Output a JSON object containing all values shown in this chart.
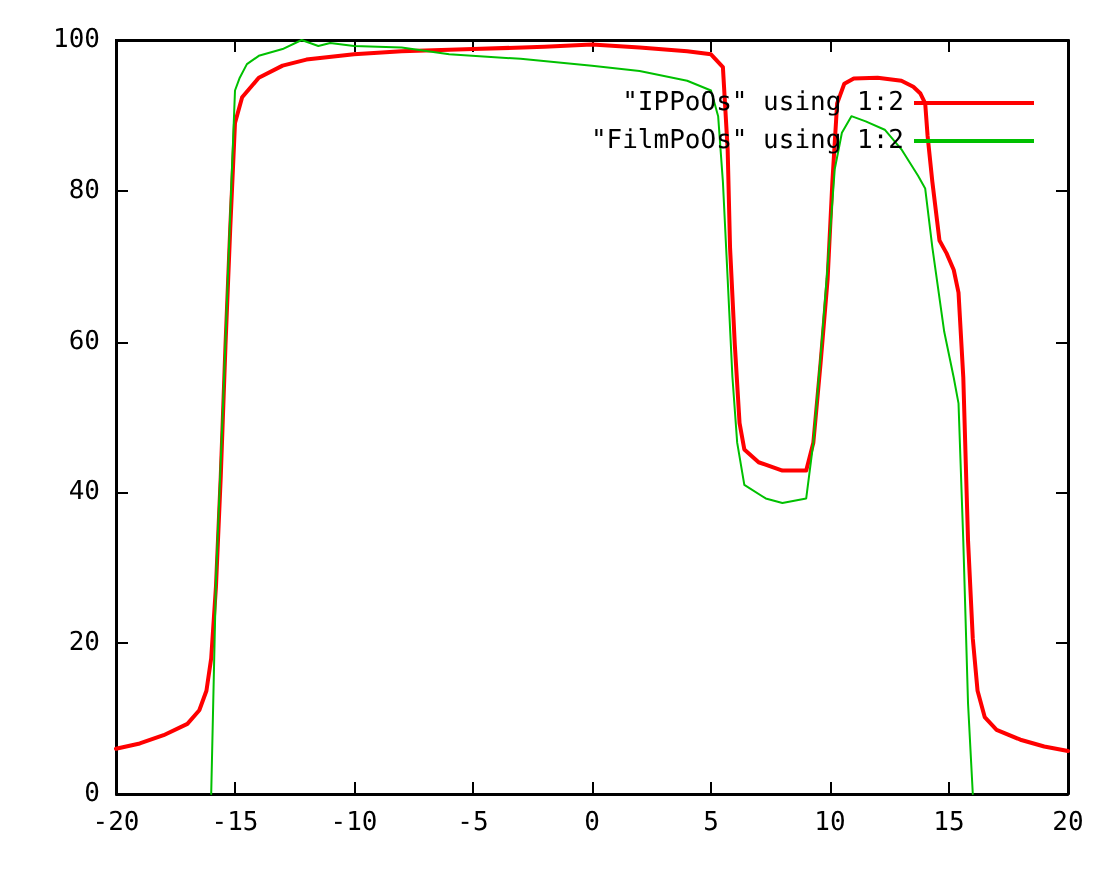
{
  "chart_data": {
    "type": "line",
    "series": [
      {
        "name": "\"IPPoOs\" using 1:2",
        "color": "#ff0000",
        "x": [
          -20,
          -19,
          -18,
          -17,
          -16.5,
          -16.2,
          -16,
          -15.8,
          -15.6,
          -15.4,
          -15.2,
          -15,
          -14.7,
          -14,
          -13,
          -12,
          -10,
          -8,
          -5,
          -2,
          0,
          2,
          4,
          5,
          5.5,
          5.7,
          5.8,
          6,
          6.2,
          6.4,
          7,
          8,
          9,
          9.3,
          9.6,
          9.9,
          10.1,
          10.3,
          10.6,
          11,
          12,
          13,
          13.5,
          13.8,
          14,
          14.1,
          14.3,
          14.6,
          14.9,
          15.2,
          15.4,
          15.6,
          15.8,
          16,
          16.2,
          16.5,
          17,
          18,
          19,
          20
        ],
        "values": [
          6,
          6.7,
          7.8,
          9.3,
          11.1,
          13.7,
          18,
          27.5,
          42,
          59.5,
          75,
          89,
          92.4,
          95,
          96.6,
          97.4,
          98.1,
          98.5,
          98.8,
          99.1,
          99.4,
          99,
          98.5,
          98.1,
          96.4,
          85.5,
          72.5,
          59.6,
          49.2,
          45.7,
          44,
          42.9,
          42.9,
          46.6,
          57,
          68.3,
          81.2,
          91.6,
          94.2,
          94.9,
          95,
          94.6,
          93.8,
          92.9,
          91.6,
          87.3,
          81.2,
          73.4,
          71.7,
          69.5,
          66.5,
          55.3,
          33.6,
          20.6,
          13.7,
          10.2,
          8.5,
          7.2,
          6.3,
          5.7
        ]
      },
      {
        "name": "\"FilmPoOs\" using 1:2",
        "color": "#00c000",
        "x": [
          -16,
          -15.8,
          -15.5,
          -15.2,
          -15,
          -14.8,
          -14.5,
          -14,
          -13,
          -12.2,
          -11.5,
          -11,
          -10,
          -8,
          -6,
          -3,
          0,
          2,
          4,
          5,
          5.3,
          5.5,
          5.7,
          5.9,
          6.1,
          6.4,
          7.3,
          8,
          9,
          9.3,
          9.6,
          9.9,
          10.2,
          10.5,
          10.9,
          11.5,
          12.3,
          13,
          13.7,
          14,
          14.3,
          14.8,
          15.2,
          15.4,
          15.6,
          15.8,
          16
        ],
        "values": [
          0,
          28.4,
          51.8,
          76.9,
          93.3,
          95,
          96.8,
          97.9,
          98.8,
          100,
          99.2,
          99.6,
          99.2,
          99,
          98.1,
          97.5,
          96.6,
          95.9,
          94.6,
          93.3,
          89.9,
          81.2,
          68.3,
          55.3,
          46.6,
          41,
          39.2,
          38.6,
          39.2,
          46.6,
          57.8,
          70,
          82.9,
          87.7,
          89.9,
          89.2,
          88.1,
          85.5,
          82,
          80.3,
          72.5,
          61.3,
          55.2,
          51.8,
          33.6,
          12,
          0
        ]
      }
    ],
    "xlim": [
      -20,
      20
    ],
    "xticks": [
      -20,
      -15,
      -10,
      -5,
      0,
      5,
      10,
      15,
      20
    ],
    "ylim": [
      0,
      100
    ],
    "yticks": [
      0,
      20,
      40,
      60,
      80,
      100
    ],
    "grid": false,
    "legend": "top right",
    "marker": "none",
    "line_style": "solid"
  }
}
